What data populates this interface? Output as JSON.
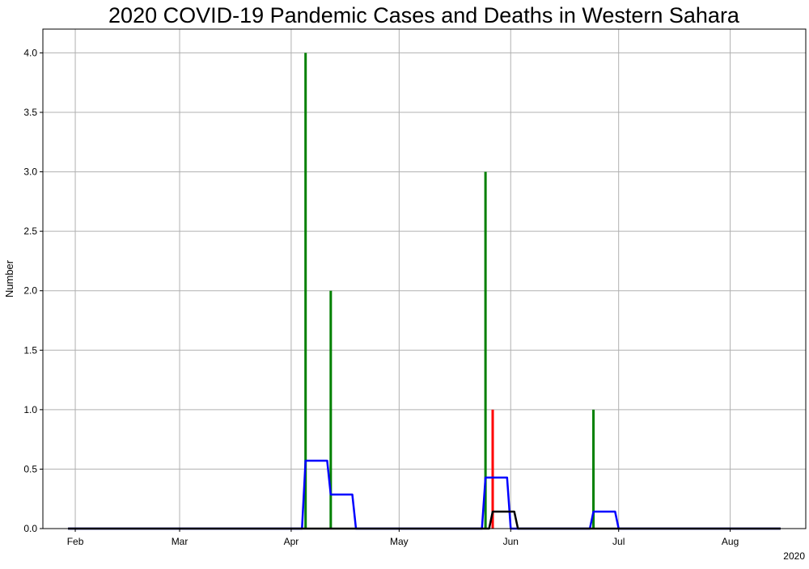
{
  "chart_data": {
    "type": "bar",
    "title": "2020 COVID-19 Pandemic Cases and Deaths in Western Sahara",
    "xlabel": "",
    "ylabel": "Number",
    "x_offset_label": "2020",
    "xlim": [
      "2020-01-23",
      "2020-08-22"
    ],
    "ylim": [
      0,
      4.2
    ],
    "grid": true,
    "x_ticks": [
      {
        "date": "2020-02-01",
        "label": "Feb"
      },
      {
        "date": "2020-03-01",
        "label": "Mar"
      },
      {
        "date": "2020-04-01",
        "label": "Apr"
      },
      {
        "date": "2020-05-01",
        "label": "May"
      },
      {
        "date": "2020-06-01",
        "label": "Jun"
      },
      {
        "date": "2020-07-01",
        "label": "Jul"
      },
      {
        "date": "2020-08-01",
        "label": "Aug"
      }
    ],
    "y_ticks": [
      0.0,
      0.5,
      1.0,
      1.5,
      2.0,
      2.5,
      3.0,
      3.5,
      4.0
    ],
    "series": [
      {
        "style": "bar",
        "color": "#008000",
        "points": [
          {
            "x": "2020-04-05",
            "y": 4
          },
          {
            "x": "2020-04-12",
            "y": 2
          },
          {
            "x": "2020-05-25",
            "y": 3
          },
          {
            "x": "2020-06-24",
            "y": 1
          }
        ]
      },
      {
        "style": "bar",
        "color": "#ff0000",
        "points": [
          {
            "x": "2020-05-27",
            "y": 1
          }
        ]
      },
      {
        "style": "line",
        "color": "#0000ff",
        "points": [
          {
            "x": "2020-01-30",
            "y": 0
          },
          {
            "x": "2020-04-04",
            "y": 0
          },
          {
            "x": "2020-04-05",
            "y": 0.571
          },
          {
            "x": "2020-04-11",
            "y": 0.571
          },
          {
            "x": "2020-04-12",
            "y": 0.286
          },
          {
            "x": "2020-04-18",
            "y": 0.286
          },
          {
            "x": "2020-04-19",
            "y": 0
          },
          {
            "x": "2020-05-24",
            "y": 0
          },
          {
            "x": "2020-05-25",
            "y": 0.429
          },
          {
            "x": "2020-05-31",
            "y": 0.429
          },
          {
            "x": "2020-06-01",
            "y": 0
          },
          {
            "x": "2020-06-23",
            "y": 0
          },
          {
            "x": "2020-06-24",
            "y": 0.143
          },
          {
            "x": "2020-06-30",
            "y": 0.143
          },
          {
            "x": "2020-07-01",
            "y": 0
          },
          {
            "x": "2020-08-15",
            "y": 0
          }
        ]
      },
      {
        "style": "line",
        "color": "#000000",
        "points": [
          {
            "x": "2020-01-30",
            "y": 0
          },
          {
            "x": "2020-05-26",
            "y": 0
          },
          {
            "x": "2020-05-27",
            "y": 0.143
          },
          {
            "x": "2020-06-02",
            "y": 0.143
          },
          {
            "x": "2020-06-03",
            "y": 0
          },
          {
            "x": "2020-08-15",
            "y": 0
          }
        ]
      }
    ]
  }
}
